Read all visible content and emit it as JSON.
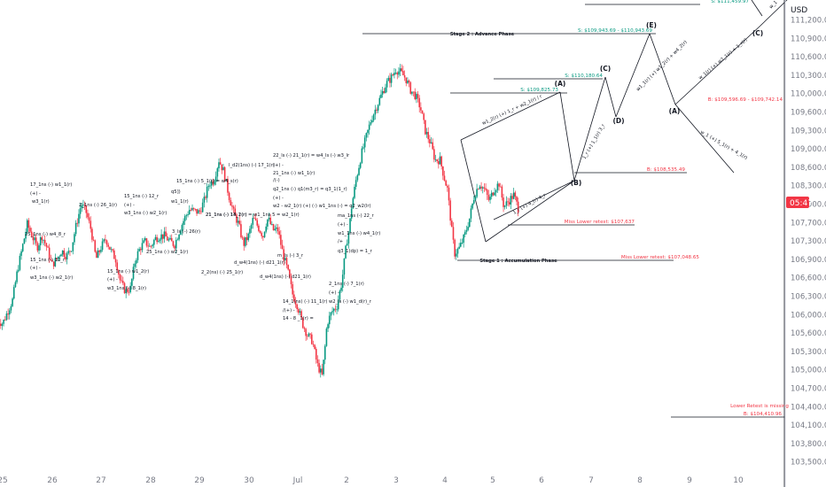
{
  "chart_data": {
    "type": "candlestick",
    "currency": "USD",
    "y_range": [
      103550,
      111420
    ],
    "y_ticks": [
      "111,200.00",
      "110,900.00",
      "110,600.00",
      "110,300.00",
      "110,000.00",
      "109,600.00",
      "109,300.00",
      "109,000.00",
      "108,600.00",
      "108,300.00",
      "108,000.00",
      "107,700.00",
      "107,300.00",
      "106,900.00",
      "106,600.00",
      "106,300.00",
      "106,000.00",
      "105,600.00",
      "105,300.00",
      "105,000.00",
      "104,700.00",
      "104,400.00",
      "104,100.00",
      "103,800.00",
      "103,500.00"
    ],
    "x_ticks": [
      "25",
      "26",
      "27",
      "28",
      "29",
      "30",
      "Jul",
      "2",
      "3",
      "4",
      "5",
      "6",
      "7",
      "8",
      "9",
      "10"
    ],
    "current_price_label": "05:47",
    "price_path": [
      [
        -0.1,
        106050
      ],
      [
        0.0,
        106000
      ],
      [
        0.1,
        106200
      ],
      [
        0.2,
        106400
      ],
      [
        0.3,
        106900
      ],
      [
        0.4,
        107300
      ],
      [
        0.5,
        107700
      ],
      [
        0.6,
        107500
      ],
      [
        0.7,
        107300
      ],
      [
        0.8,
        107500
      ],
      [
        0.9,
        107300
      ],
      [
        1.0,
        107000
      ],
      [
        1.1,
        107100
      ],
      [
        1.2,
        107250
      ],
      [
        1.3,
        107150
      ],
      [
        1.4,
        107300
      ],
      [
        1.5,
        107700
      ],
      [
        1.6,
        108050
      ],
      [
        1.7,
        107900
      ],
      [
        1.8,
        107600
      ],
      [
        1.9,
        107100
      ],
      [
        2.0,
        107300
      ],
      [
        2.1,
        107450
      ],
      [
        2.2,
        107250
      ],
      [
        2.3,
        107100
      ],
      [
        2.4,
        106700
      ],
      [
        2.5,
        106550
      ],
      [
        2.6,
        106600
      ],
      [
        2.7,
        107100
      ],
      [
        2.8,
        107300
      ],
      [
        2.9,
        107400
      ],
      [
        3.0,
        107300
      ],
      [
        3.1,
        107450
      ],
      [
        3.2,
        107500
      ],
      [
        3.3,
        107500
      ],
      [
        3.4,
        107400
      ],
      [
        3.5,
        107350
      ],
      [
        3.6,
        107600
      ],
      [
        3.7,
        107800
      ],
      [
        3.8,
        107950
      ],
      [
        4.0,
        107900
      ],
      [
        4.1,
        108100
      ],
      [
        4.2,
        108400
      ],
      [
        4.3,
        108450
      ],
      [
        4.4,
        108800
      ],
      [
        4.5,
        108600
      ],
      [
        4.6,
        108200
      ],
      [
        4.7,
        107900
      ],
      [
        4.8,
        107700
      ],
      [
        4.9,
        107350
      ],
      [
        5.0,
        107500
      ],
      [
        5.1,
        107800
      ],
      [
        5.3,
        107500
      ],
      [
        5.35,
        107700
      ],
      [
        5.4,
        107800
      ],
      [
        5.5,
        107600
      ],
      [
        5.6,
        107600
      ],
      [
        5.7,
        107200
      ],
      [
        5.8,
        106900
      ],
      [
        5.9,
        106500
      ],
      [
        6.0,
        106300
      ],
      [
        6.1,
        106000
      ],
      [
        6.2,
        105800
      ],
      [
        6.3,
        105700
      ],
      [
        6.4,
        105300
      ],
      [
        6.45,
        105200
      ],
      [
        6.5,
        105100
      ],
      [
        6.55,
        105500
      ],
      [
        6.6,
        106000
      ],
      [
        6.7,
        106200
      ],
      [
        6.8,
        106300
      ],
      [
        6.9,
        106700
      ],
      [
        7.0,
        107400
      ],
      [
        7.05,
        107600
      ],
      [
        7.1,
        108000
      ],
      [
        7.2,
        108500
      ],
      [
        7.3,
        108900
      ],
      [
        7.4,
        109200
      ],
      [
        7.5,
        109500
      ],
      [
        7.6,
        109700
      ],
      [
        7.7,
        109900
      ],
      [
        7.8,
        110100
      ],
      [
        7.9,
        110200
      ],
      [
        8.0,
        110350
      ],
      [
        8.1,
        110300
      ],
      [
        8.2,
        110200
      ],
      [
        8.3,
        110000
      ],
      [
        8.4,
        109900
      ],
      [
        8.5,
        109700
      ],
      [
        8.6,
        109300
      ],
      [
        8.7,
        109100
      ],
      [
        8.8,
        108800
      ],
      [
        8.9,
        108800
      ],
      [
        9.0,
        108450
      ],
      [
        9.05,
        108300
      ],
      [
        9.1,
        107900
      ],
      [
        9.15,
        107500
      ],
      [
        9.2,
        107200
      ],
      [
        9.3,
        107300
      ],
      [
        9.4,
        107500
      ],
      [
        9.5,
        107800
      ],
      [
        9.6,
        108200
      ],
      [
        9.7,
        108400
      ],
      [
        9.8,
        108300
      ],
      [
        9.9,
        108100
      ],
      [
        10.0,
        108300
      ],
      [
        10.1,
        108400
      ],
      [
        10.2,
        108000
      ],
      [
        10.3,
        108100
      ],
      [
        10.4,
        108200
      ],
      [
        10.5,
        107950
      ]
    ],
    "levels": [
      {
        "text": "S: $111,459.97",
        "color": "teal",
        "y": 111459.97
      },
      {
        "text": "S: $109,943.69 - $110,943.69",
        "color": "teal",
        "y": 110943.69
      },
      {
        "text": "S: $110,180.64",
        "color": "teal",
        "y": 110180.64
      },
      {
        "text": "S: $109,825.73",
        "color": "teal",
        "y": 109825.73
      },
      {
        "text": "B: $109,596.69 - $109,742.14",
        "color": "red",
        "y": 109596.69
      },
      {
        "text": "B: $108,535.49",
        "color": "red",
        "y": 108535.49
      },
      {
        "text": "Miss Lower retest: $107,637",
        "color": "red",
        "y": 107637
      },
      {
        "text": "Miss Lower retest: $107,048.65",
        "color": "red",
        "y": 107048.65
      },
      {
        "text": "Lower Retest is missing",
        "color": "red",
        "y": 104700
      },
      {
        "text": "B: $104,410.96",
        "color": "red",
        "y": 104410.96
      }
    ],
    "stages": [
      "Stage 2 : Advance Phase",
      "Stage 1 : Accumulation Phase"
    ],
    "waves": [
      "(A)",
      "(C)",
      "(E)",
      "(B)",
      "(D)",
      "(A)",
      "(C)"
    ],
    "diagonal_labels": [
      "w1_2(r) (+) 1_r + w2_1(r) / r",
      "1_r (+) 4_(r) 4_r",
      "1_r (+) 1_1(r) 3_r",
      "w1_1(r) (+) w1_2(r) + w4_2(r)",
      "w_1(r) (+) w2_1(r) + 1_r(r)",
      "w_1 (+) 5_1(r) + 4_1(r)",
      "w_1"
    ],
    "annotations": [
      "17_1ns (-) w1_1(r)",
      "(+) -",
      "w3_1(r)",
      "2_1ns (-) 26_1(r)",
      "15_1ns (-) 12_r",
      "(+) -",
      "w3_1ns (-) w2_1(r)",
      "25_1ns (-) w4_8_r",
      "15_1ns (-) 12_r",
      "(+) -",
      "w3_1ns (-) w2_1(r)",
      "15_1ns (-) w1_2(r)",
      "(+) -",
      "w3_1ns (-) 8_1(r)",
      "25_1ns (-) w2_1(r)",
      "15_1ns (-) 5_1(r) = w4_s(r)",
      "q5])",
      "w1_1(r)",
      "3_ls (-) 26(r)",
      "21_1ns (-) 13_1(r)",
      "2_2(ns) (-) 25_1(r)",
      "l_d2(1ns) (-) 17_1(r)",
      "21_1ns (-) 14_2(r) = w1_1ns 5 = w2_1(r)",
      "d_w4(1ns) (-) d21_1(r)",
      "d_w4(1ns) (-) d21_1(r)",
      "22_ls (-) 21_1(r) = w4_ls (-) w3_lr",
      "(+) -",
      "21_1ns (-) w1_1(r)",
      "/(-)",
      "q2_1ns (-) q1(m3_r) = q3_1(1_r)",
      "(+) -",
      "w2 - w2_1(r) (+) (-) w1_1ns (-) = q2_w2(lr)",
      "m_ls (-) 3_r",
      "ma_1ns (-) 22_r",
      "(+) -",
      "w1_1ns (-) w4_1(r)",
      "/+",
      "q3_1(dp) = 1_r",
      "14_1(ns) (-) 11_1(r)",
      "/(+) -",
      "14 - 8 _1(r) =",
      "2_1ns (-) 7_1(r)",
      "(+) -",
      "w2_ls (-) w1_d(r)_r"
    ]
  }
}
